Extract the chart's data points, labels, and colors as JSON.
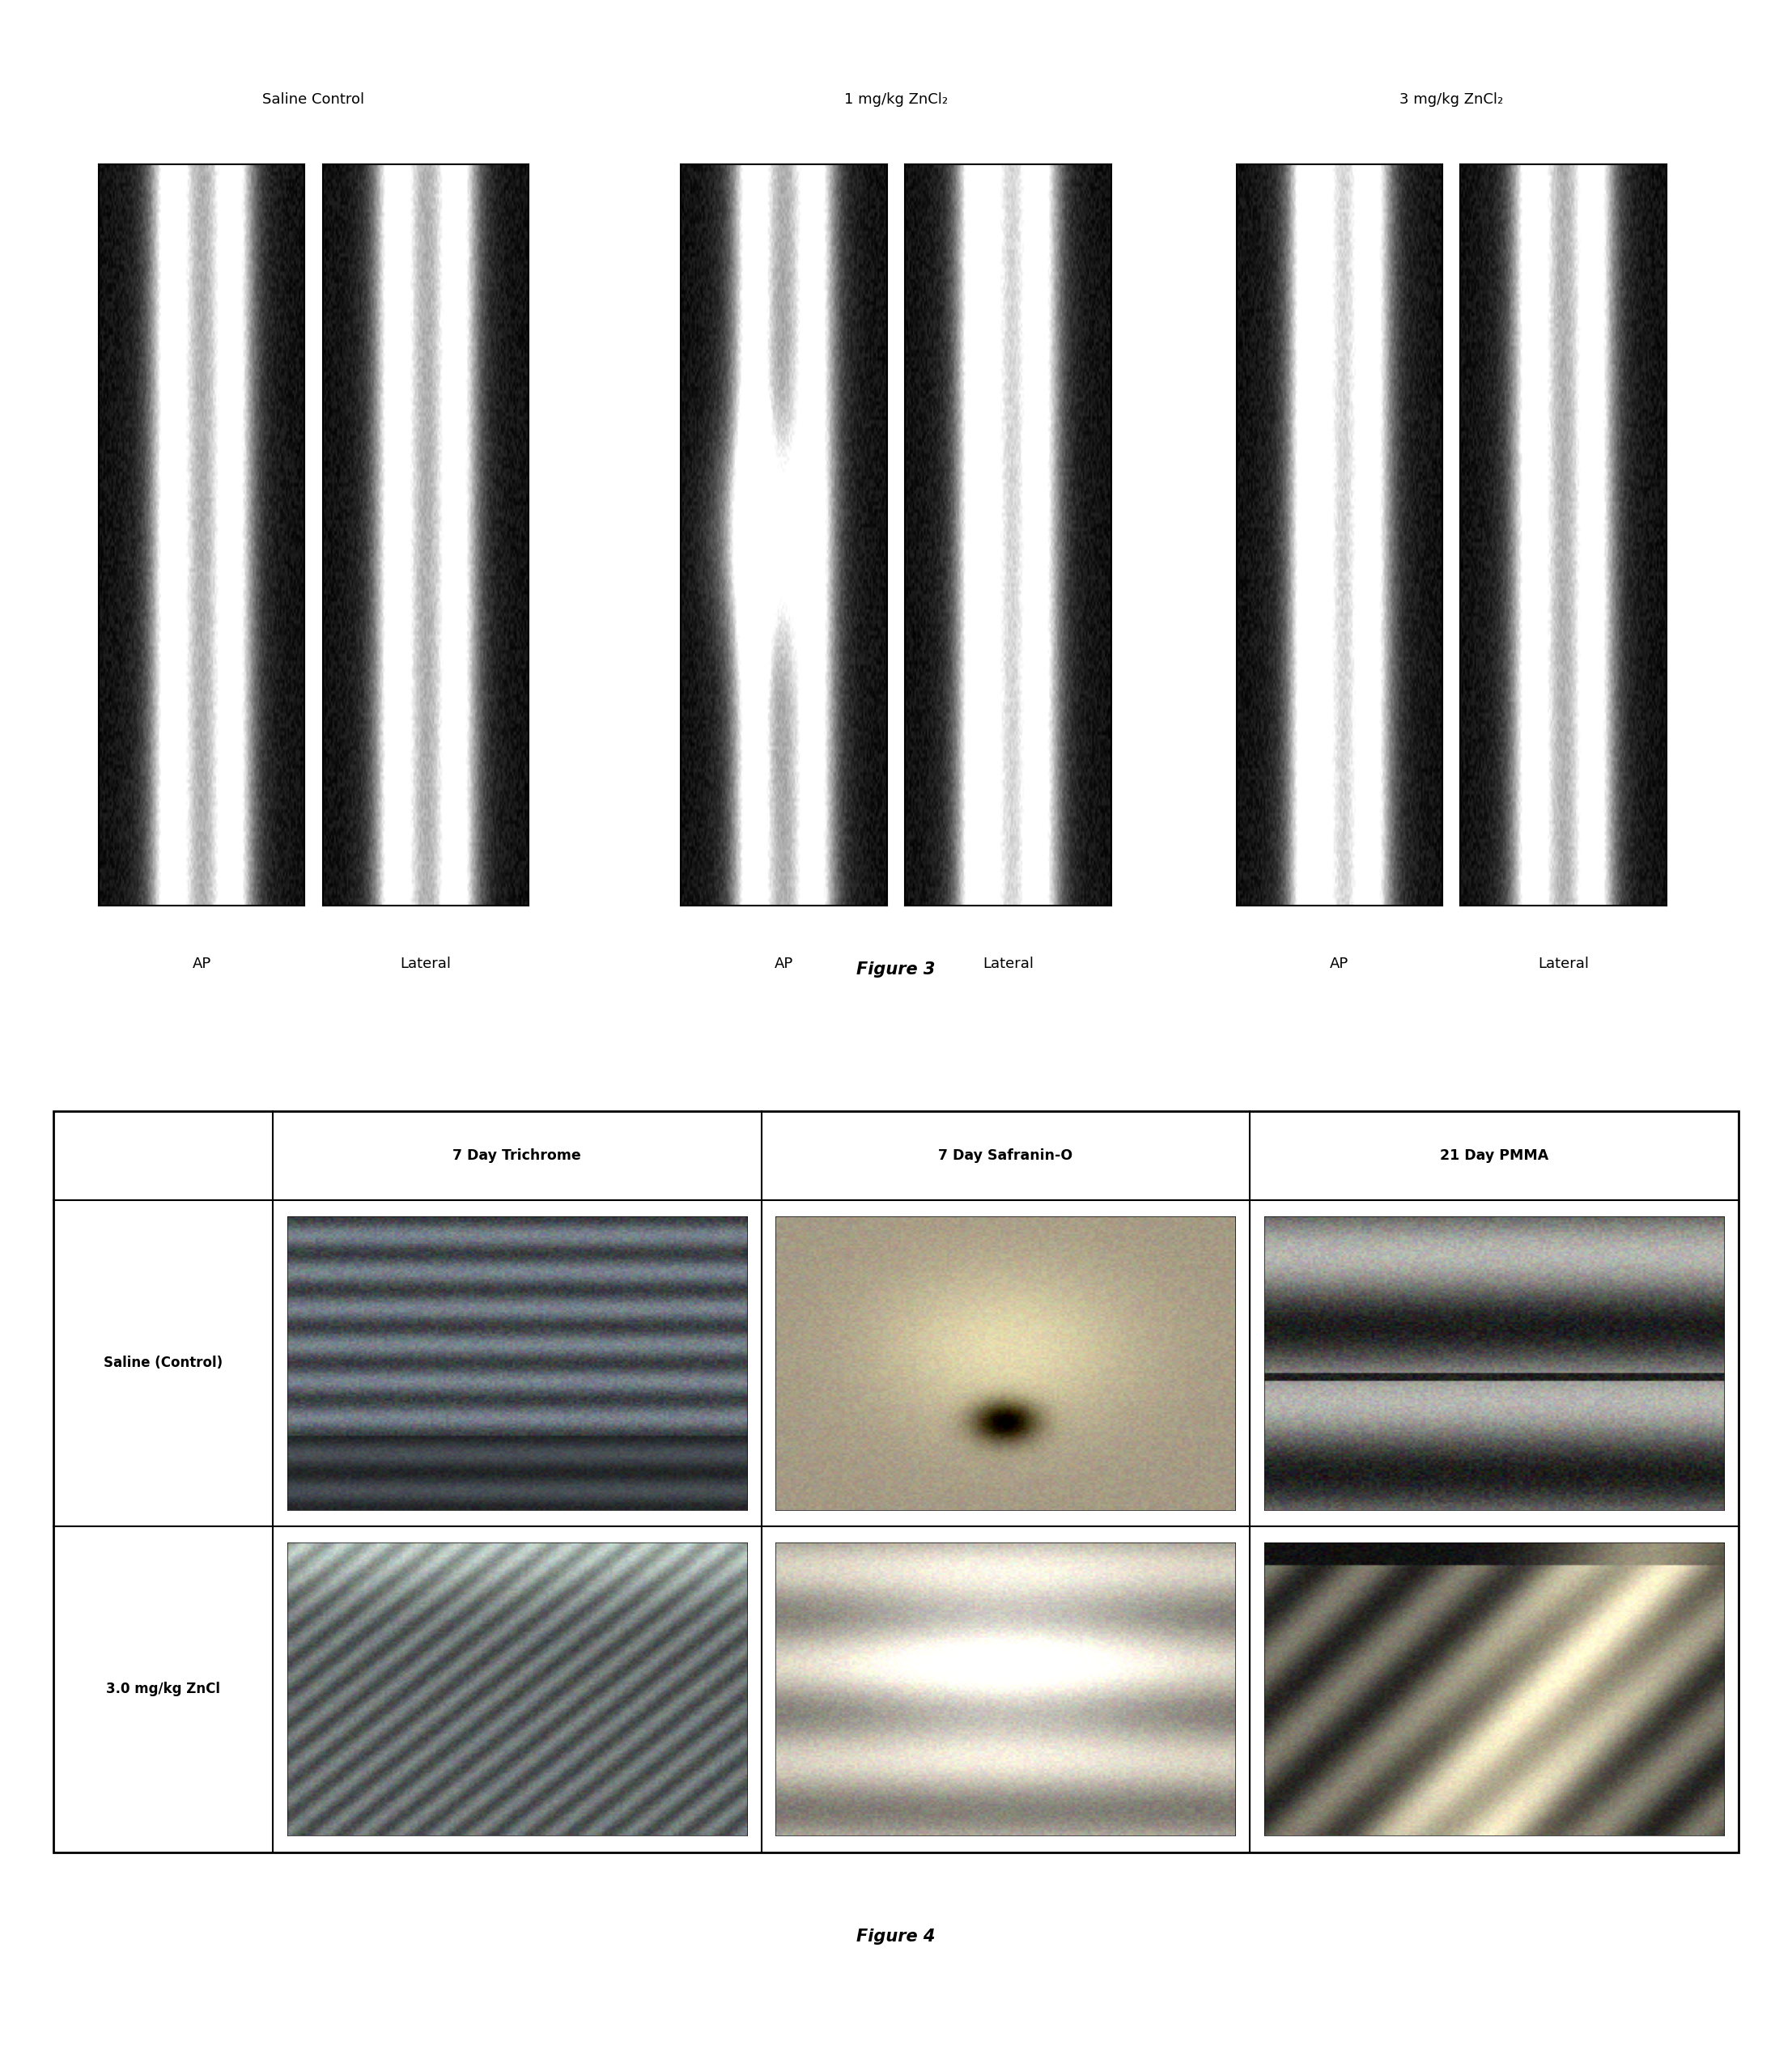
{
  "fig3_title_groups": [
    "Saline Control",
    "1 mg/kg ZnCl₂",
    "3 mg/kg ZnCl₂"
  ],
  "fig3_sublabels": [
    "AP",
    "Lateral",
    "AP",
    "Lateral",
    "AP",
    "Lateral"
  ],
  "fig3_label": "Figure 3",
  "fig4_label": "Figure 4",
  "fig4_col_headers": [
    "7 Day Trichrome",
    "7 Day Safranin-O",
    "21 Day PMMA"
  ],
  "fig4_row_headers": [
    "Saline (Control)",
    "3.0 mg/kg ZnCl"
  ],
  "background_color": "#ffffff",
  "border_color": "#000000",
  "text_color": "#000000"
}
